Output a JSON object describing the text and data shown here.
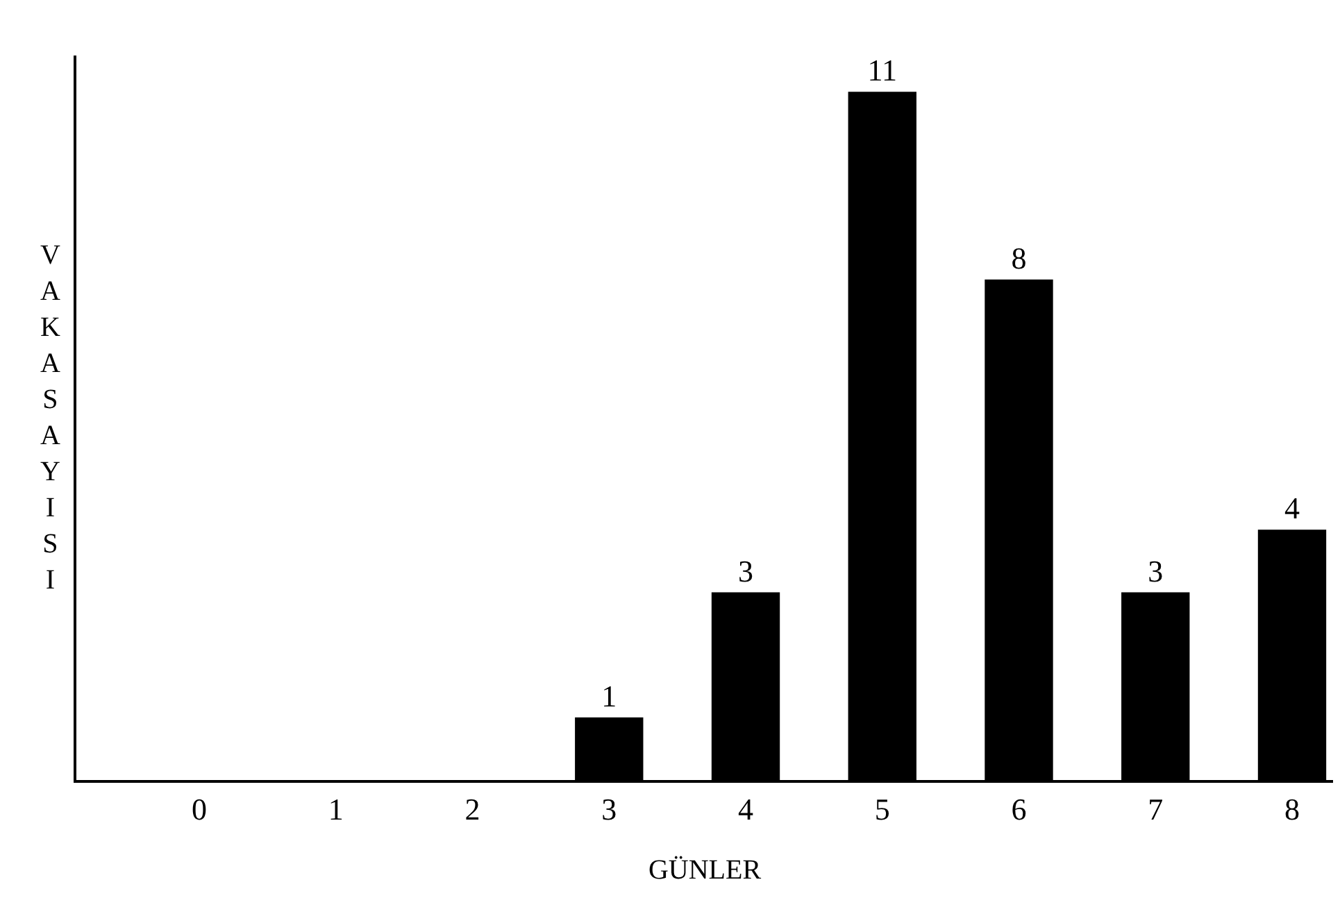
{
  "chart_data": {
    "type": "bar",
    "xlabel": "GÜNLER",
    "ylabel": "VAKASAYISI",
    "categories": [
      "0",
      "1",
      "2",
      "3",
      "4",
      "5",
      "6",
      "7",
      "8"
    ],
    "values": [
      0,
      0,
      0,
      1,
      3,
      11,
      8,
      3,
      4
    ],
    "value_labels": [
      null,
      null,
      null,
      "1",
      "3",
      "11",
      "8",
      "3",
      "4"
    ],
    "color": "#000000",
    "tick_labels": "x"
  }
}
